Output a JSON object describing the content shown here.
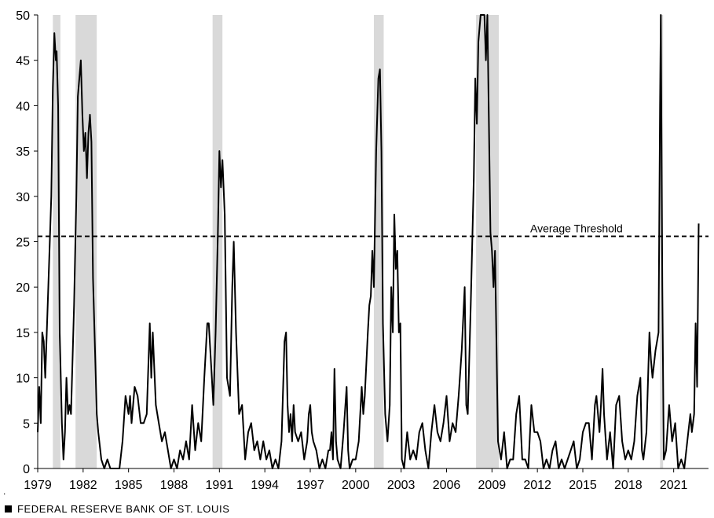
{
  "chart_data": {
    "type": "line",
    "title": "",
    "xlabel": "",
    "ylabel": "",
    "xlim": [
      1979.0,
      2023.3
    ],
    "ylim": [
      0,
      50
    ],
    "y_ticks": [
      0,
      5,
      10,
      15,
      20,
      25,
      30,
      35,
      40,
      45,
      50
    ],
    "x_ticks": [
      1979,
      1982,
      1985,
      1988,
      1991,
      1994,
      1997,
      2000,
      2003,
      2006,
      2009,
      2012,
      2015,
      2018,
      2021
    ],
    "grid": false,
    "threshold": {
      "label": "Average Threshold",
      "value": 25.6
    },
    "recessions": [
      [
        1980.0,
        1980.5
      ],
      [
        1981.5,
        1982.9
      ],
      [
        1990.55,
        1991.2
      ],
      [
        2001.2,
        2001.85
      ],
      [
        2007.95,
        2009.45
      ],
      [
        2020.1,
        2020.3
      ]
    ],
    "series": [
      {
        "points": [
          [
            1979.0,
            4
          ],
          [
            1979.1,
            9
          ],
          [
            1979.2,
            5
          ],
          [
            1979.3,
            15
          ],
          [
            1979.4,
            14
          ],
          [
            1979.5,
            10
          ],
          [
            1979.7,
            20
          ],
          [
            1979.9,
            30
          ],
          [
            1980.0,
            42
          ],
          [
            1980.1,
            48
          ],
          [
            1980.2,
            45
          ],
          [
            1980.25,
            46
          ],
          [
            1980.35,
            40
          ],
          [
            1980.45,
            15
          ],
          [
            1980.6,
            5
          ],
          [
            1980.7,
            1
          ],
          [
            1980.8,
            4
          ],
          [
            1980.9,
            10
          ],
          [
            1981.0,
            6
          ],
          [
            1981.1,
            7
          ],
          [
            1981.2,
            6
          ],
          [
            1981.4,
            18
          ],
          [
            1981.55,
            30
          ],
          [
            1981.65,
            41
          ],
          [
            1981.75,
            43
          ],
          [
            1981.85,
            45
          ],
          [
            1981.95,
            39
          ],
          [
            1982.05,
            35
          ],
          [
            1982.15,
            37
          ],
          [
            1982.25,
            32
          ],
          [
            1982.35,
            37
          ],
          [
            1982.45,
            39
          ],
          [
            1982.55,
            36
          ],
          [
            1982.65,
            21
          ],
          [
            1982.8,
            12
          ],
          [
            1982.9,
            6
          ],
          [
            1983.0,
            4
          ],
          [
            1983.2,
            1
          ],
          [
            1983.4,
            0
          ],
          [
            1983.6,
            1
          ],
          [
            1983.8,
            0
          ],
          [
            1984.2,
            0
          ],
          [
            1984.4,
            0
          ],
          [
            1984.6,
            3
          ],
          [
            1984.8,
            8
          ],
          [
            1985.0,
            6
          ],
          [
            1985.1,
            8
          ],
          [
            1985.2,
            5
          ],
          [
            1985.4,
            9
          ],
          [
            1985.6,
            8
          ],
          [
            1985.8,
            5
          ],
          [
            1986.0,
            5
          ],
          [
            1986.2,
            6
          ],
          [
            1986.4,
            16
          ],
          [
            1986.5,
            10
          ],
          [
            1986.6,
            15
          ],
          [
            1986.8,
            7
          ],
          [
            1987.0,
            5
          ],
          [
            1987.2,
            3
          ],
          [
            1987.4,
            4
          ],
          [
            1987.6,
            2
          ],
          [
            1987.8,
            0
          ],
          [
            1988.0,
            1
          ],
          [
            1988.2,
            0
          ],
          [
            1988.4,
            2
          ],
          [
            1988.6,
            1
          ],
          [
            1988.8,
            3
          ],
          [
            1989.0,
            1
          ],
          [
            1989.2,
            7
          ],
          [
            1989.4,
            2
          ],
          [
            1989.6,
            5
          ],
          [
            1989.8,
            3
          ],
          [
            1990.0,
            10
          ],
          [
            1990.2,
            16
          ],
          [
            1990.3,
            16
          ],
          [
            1990.5,
            10
          ],
          [
            1990.6,
            7
          ],
          [
            1990.75,
            15
          ],
          [
            1990.9,
            26
          ],
          [
            1991.0,
            35
          ],
          [
            1991.1,
            31
          ],
          [
            1991.2,
            34
          ],
          [
            1991.35,
            28
          ],
          [
            1991.5,
            10
          ],
          [
            1991.7,
            8
          ],
          [
            1991.85,
            20
          ],
          [
            1991.95,
            25
          ],
          [
            1992.1,
            15
          ],
          [
            1992.3,
            6
          ],
          [
            1992.5,
            7
          ],
          [
            1992.7,
            1
          ],
          [
            1992.9,
            4
          ],
          [
            1993.1,
            5
          ],
          [
            1993.3,
            2
          ],
          [
            1993.5,
            3
          ],
          [
            1993.7,
            1
          ],
          [
            1993.9,
            3
          ],
          [
            1994.1,
            1
          ],
          [
            1994.3,
            2
          ],
          [
            1994.5,
            0
          ],
          [
            1994.7,
            1
          ],
          [
            1994.9,
            0
          ],
          [
            1995.1,
            3
          ],
          [
            1995.3,
            14
          ],
          [
            1995.4,
            15
          ],
          [
            1995.5,
            7
          ],
          [
            1995.6,
            4
          ],
          [
            1995.7,
            6
          ],
          [
            1995.8,
            3
          ],
          [
            1995.9,
            7
          ],
          [
            1996.0,
            4
          ],
          [
            1996.2,
            3
          ],
          [
            1996.4,
            4
          ],
          [
            1996.6,
            1
          ],
          [
            1996.8,
            3
          ],
          [
            1996.9,
            6
          ],
          [
            1997.0,
            7
          ],
          [
            1997.1,
            4
          ],
          [
            1997.2,
            3
          ],
          [
            1997.4,
            2
          ],
          [
            1997.6,
            0
          ],
          [
            1997.8,
            1
          ],
          [
            1998.0,
            0
          ],
          [
            1998.2,
            2
          ],
          [
            1998.3,
            2
          ],
          [
            1998.4,
            4
          ],
          [
            1998.5,
            1
          ],
          [
            1998.6,
            11
          ],
          [
            1998.7,
            3
          ],
          [
            1998.8,
            1
          ],
          [
            1999.0,
            0
          ],
          [
            1999.2,
            4
          ],
          [
            1999.4,
            9
          ],
          [
            1999.5,
            2
          ],
          [
            1999.6,
            0
          ],
          [
            1999.8,
            1
          ],
          [
            2000.0,
            1
          ],
          [
            2000.2,
            3
          ],
          [
            2000.4,
            9
          ],
          [
            2000.5,
            6
          ],
          [
            2000.6,
            8
          ],
          [
            2000.8,
            15
          ],
          [
            2000.9,
            18
          ],
          [
            2001.0,
            19
          ],
          [
            2001.1,
            24
          ],
          [
            2001.2,
            20
          ],
          [
            2001.35,
            35
          ],
          [
            2001.5,
            43
          ],
          [
            2001.6,
            44
          ],
          [
            2001.7,
            35
          ],
          [
            2001.8,
            16
          ],
          [
            2001.95,
            6
          ],
          [
            2002.1,
            3
          ],
          [
            2002.25,
            7
          ],
          [
            2002.35,
            20
          ],
          [
            2002.45,
            15
          ],
          [
            2002.55,
            28
          ],
          [
            2002.65,
            22
          ],
          [
            2002.75,
            24
          ],
          [
            2002.85,
            15
          ],
          [
            2002.95,
            16
          ],
          [
            2003.05,
            1
          ],
          [
            2003.2,
            0
          ],
          [
            2003.4,
            4
          ],
          [
            2003.6,
            1
          ],
          [
            2003.8,
            2
          ],
          [
            2004.0,
            1
          ],
          [
            2004.2,
            4
          ],
          [
            2004.4,
            5
          ],
          [
            2004.6,
            2
          ],
          [
            2004.8,
            0
          ],
          [
            2005.0,
            4
          ],
          [
            2005.2,
            7
          ],
          [
            2005.4,
            4
          ],
          [
            2005.6,
            3
          ],
          [
            2005.8,
            5
          ],
          [
            2006.0,
            8
          ],
          [
            2006.2,
            3
          ],
          [
            2006.4,
            5
          ],
          [
            2006.6,
            4
          ],
          [
            2006.8,
            8
          ],
          [
            2007.0,
            13
          ],
          [
            2007.2,
            20
          ],
          [
            2007.3,
            7
          ],
          [
            2007.4,
            6
          ],
          [
            2007.6,
            18
          ],
          [
            2007.8,
            32
          ],
          [
            2007.9,
            43
          ],
          [
            2008.0,
            38
          ],
          [
            2008.1,
            47
          ],
          [
            2008.25,
            50
          ],
          [
            2008.5,
            50
          ],
          [
            2008.6,
            45
          ],
          [
            2008.7,
            50
          ],
          [
            2008.9,
            26
          ],
          [
            2009.0,
            24
          ],
          [
            2009.1,
            20
          ],
          [
            2009.2,
            24
          ],
          [
            2009.4,
            3
          ],
          [
            2009.6,
            1
          ],
          [
            2009.8,
            4
          ],
          [
            2010.0,
            0
          ],
          [
            2010.2,
            1
          ],
          [
            2010.4,
            1
          ],
          [
            2010.6,
            6
          ],
          [
            2010.8,
            8
          ],
          [
            2011.0,
            1
          ],
          [
            2011.2,
            1
          ],
          [
            2011.4,
            0
          ],
          [
            2011.6,
            7
          ],
          [
            2011.8,
            4
          ],
          [
            2012.0,
            4
          ],
          [
            2012.2,
            3
          ],
          [
            2012.4,
            0
          ],
          [
            2012.6,
            1
          ],
          [
            2012.8,
            0
          ],
          [
            2013.0,
            2
          ],
          [
            2013.2,
            3
          ],
          [
            2013.4,
            0
          ],
          [
            2013.6,
            1
          ],
          [
            2013.8,
            0
          ],
          [
            2014.0,
            1
          ],
          [
            2014.2,
            2
          ],
          [
            2014.4,
            3
          ],
          [
            2014.6,
            0
          ],
          [
            2014.8,
            1
          ],
          [
            2015.0,
            4
          ],
          [
            2015.2,
            5
          ],
          [
            2015.4,
            5
          ],
          [
            2015.6,
            1
          ],
          [
            2015.8,
            7
          ],
          [
            2015.9,
            8
          ],
          [
            2016.0,
            6
          ],
          [
            2016.1,
            4
          ],
          [
            2016.2,
            7
          ],
          [
            2016.3,
            11
          ],
          [
            2016.4,
            6
          ],
          [
            2016.6,
            1
          ],
          [
            2016.8,
            4
          ],
          [
            2017.0,
            0
          ],
          [
            2017.2,
            7
          ],
          [
            2017.4,
            8
          ],
          [
            2017.6,
            3
          ],
          [
            2017.8,
            1
          ],
          [
            2018.0,
            2
          ],
          [
            2018.2,
            1
          ],
          [
            2018.4,
            3
          ],
          [
            2018.6,
            8
          ],
          [
            2018.8,
            10
          ],
          [
            2018.9,
            2
          ],
          [
            2019.0,
            1
          ],
          [
            2019.2,
            4
          ],
          [
            2019.4,
            15
          ],
          [
            2019.5,
            12
          ],
          [
            2019.6,
            10
          ],
          [
            2019.8,
            13
          ],
          [
            2020.0,
            15
          ],
          [
            2020.1,
            40
          ],
          [
            2020.15,
            50
          ],
          [
            2020.25,
            20
          ],
          [
            2020.35,
            1
          ],
          [
            2020.5,
            2
          ],
          [
            2020.7,
            7
          ],
          [
            2020.9,
            3
          ],
          [
            2021.1,
            5
          ],
          [
            2021.3,
            0
          ],
          [
            2021.5,
            1
          ],
          [
            2021.7,
            0
          ],
          [
            2021.9,
            3
          ],
          [
            2022.1,
            6
          ],
          [
            2022.2,
            4
          ],
          [
            2022.35,
            6
          ],
          [
            2022.45,
            16
          ],
          [
            2022.55,
            9
          ],
          [
            2022.65,
            27
          ]
        ]
      }
    ]
  },
  "footer": {
    "marker": ".",
    "source": "FEDERAL RESERVE BANK OF ST. LOUIS"
  }
}
